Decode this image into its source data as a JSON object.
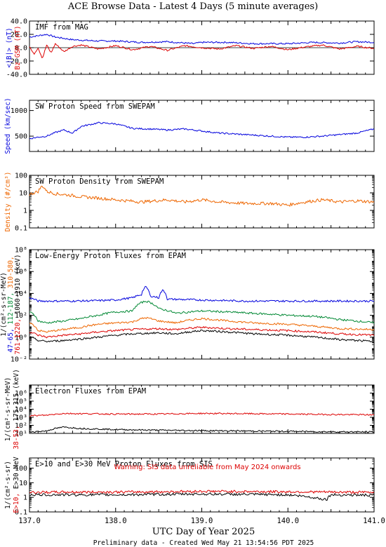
{
  "header": {
    "title": "ACE Browse Data - Latest 4 Days (5 minute averages)",
    "xaxis_title": "UTC Day of Year 2025",
    "footer": "Preliminary data - Created Wed May 21 13:54:56 PDT 2025"
  },
  "chart_data": [
    {
      "type": "line",
      "title": "IMF from MAG",
      "ylabel_parts": [
        {
          "text": "<|B|> (nT)",
          "color": "#0000dd"
        },
        {
          "text": "Bz GSM (nT)",
          "color": "#dd0000"
        }
      ],
      "yscale": "linear",
      "ylim": [
        -40,
        40
      ],
      "yticks": [
        -40,
        -20,
        0,
        20,
        40
      ],
      "ytick_labels": [
        "-40.0",
        "-20.0",
        "0.0",
        "20.0",
        "40.0"
      ],
      "zero_line": true,
      "series": [
        {
          "color": "#0000dd",
          "x": [
            137.0,
            137.1,
            137.2,
            137.3,
            137.5,
            137.8,
            138.0,
            138.3,
            138.6,
            138.9,
            139.0,
            139.3,
            139.6,
            140.0,
            140.3,
            140.6,
            140.8,
            141.0
          ],
          "values": [
            16,
            18,
            20,
            16,
            12,
            10,
            10,
            8,
            9,
            6,
            8,
            8,
            6,
            6,
            8,
            7,
            9,
            8
          ]
        },
        {
          "color": "#dd0000",
          "x": [
            137.0,
            137.05,
            137.1,
            137.15,
            137.2,
            137.25,
            137.3,
            137.4,
            137.5,
            137.6,
            137.8,
            138.0,
            138.2,
            138.4,
            138.6,
            138.8,
            139.0,
            139.2,
            139.4,
            139.6,
            139.8,
            140.0,
            140.2,
            140.4,
            140.6,
            140.8,
            141.0
          ],
          "values": [
            2,
            -10,
            0,
            -16,
            4,
            -8,
            6,
            -6,
            2,
            4,
            -2,
            3,
            -3,
            2,
            -4,
            3,
            0,
            -2,
            3,
            -1,
            2,
            -3,
            1,
            4,
            -2,
            2,
            -1
          ]
        }
      ]
    },
    {
      "type": "line",
      "title": "SW Proton Speed from SWEPAM",
      "ylabel_parts": [
        {
          "text": "Speed (km/sec)",
          "color": "#0000dd"
        }
      ],
      "yscale": "linear",
      "ylim": [
        200,
        1200
      ],
      "yticks": [
        500,
        1000
      ],
      "ytick_labels": [
        "500",
        "1000"
      ],
      "series": [
        {
          "color": "#0000dd",
          "x": [
            137.0,
            137.1,
            137.2,
            137.3,
            137.4,
            137.5,
            137.6,
            137.8,
            138.0,
            138.2,
            138.4,
            138.6,
            138.8,
            139.0,
            139.2,
            139.4,
            139.6,
            139.8,
            140.0,
            140.2,
            140.4,
            140.6,
            140.8,
            141.0
          ],
          "values": [
            450,
            480,
            500,
            570,
            620,
            560,
            690,
            760,
            740,
            650,
            640,
            620,
            640,
            600,
            560,
            540,
            520,
            500,
            480,
            480,
            500,
            530,
            560,
            640
          ]
        }
      ]
    },
    {
      "type": "line",
      "title": "SW Proton Density from SWEPAM",
      "ylabel_parts": [
        {
          "text": "Density (#/cm³)",
          "color": "#ee6600"
        }
      ],
      "yscale": "log",
      "ylim": [
        0.1,
        100
      ],
      "yticks": [
        0.1,
        1,
        10,
        100
      ],
      "ytick_labels": [
        "0.1",
        "1",
        "10",
        "100"
      ],
      "series": [
        {
          "color": "#ee6600",
          "x": [
            137.0,
            137.1,
            137.15,
            137.2,
            137.3,
            137.4,
            137.6,
            137.8,
            138.0,
            138.3,
            138.6,
            138.8,
            139.0,
            139.2,
            139.5,
            139.8,
            140.0,
            140.2,
            140.4,
            140.6,
            140.8,
            141.0
          ],
          "values": [
            8,
            12,
            25,
            12,
            9,
            8,
            6,
            5,
            4,
            3,
            4,
            3,
            4,
            3,
            2.5,
            2.5,
            2,
            3,
            4,
            3,
            3.5,
            3
          ]
        }
      ]
    },
    {
      "type": "line",
      "title": "Low-Energy Proton Fluxes from EPAM",
      "ylabel_parts": [
        {
          "text": "1/(cm²-s-sr-MeV)",
          "color": "#000000"
        },
        {
          "text": "47-65,",
          "color": "#0000dd"
        },
        {
          "text": "112-187,",
          "color": "#008833"
        },
        {
          "text": "310-580,",
          "color": "#ee6600"
        },
        {
          "text": "761-1220,",
          "color": "#dd0000"
        },
        {
          "text": "1060-1910 (keV)",
          "color": "#000000"
        }
      ],
      "yscale": "log",
      "ylim": [
        0.01,
        100000000
      ],
      "yticks": [
        0.01,
        1,
        100,
        10000,
        1000000,
        100000000
      ],
      "ytick_labels": [
        "10⁻²",
        "10⁰",
        "10²",
        "10⁴",
        "10⁶",
        "10⁸"
      ],
      "series": [
        {
          "color": "#0000dd",
          "x": [
            137.0,
            137.1,
            137.2,
            137.5,
            137.8,
            138.0,
            138.2,
            138.3,
            138.35,
            138.4,
            138.5,
            138.55,
            138.6,
            139.0,
            139.5,
            140.0,
            140.5,
            141.0
          ],
          "values": [
            4000,
            2000,
            2000,
            2000,
            2200,
            2500,
            4000,
            8000,
            40000,
            6000,
            4000,
            20000,
            3000,
            2500,
            2000,
            2000,
            2000,
            2000
          ]
        },
        {
          "color": "#008833",
          "x": [
            137.0,
            137.1,
            137.2,
            137.4,
            137.6,
            137.8,
            138.0,
            138.2,
            138.35,
            138.5,
            138.7,
            139.0,
            139.3,
            139.6,
            140.0,
            140.3,
            140.6,
            141.0
          ],
          "values": [
            200,
            30,
            20,
            30,
            50,
            100,
            200,
            250,
            2000,
            400,
            150,
            250,
            200,
            150,
            100,
            80,
            40,
            20
          ]
        },
        {
          "color": "#ee6600",
          "x": [
            137.0,
            137.1,
            137.2,
            137.4,
            137.6,
            137.8,
            138.0,
            138.2,
            138.35,
            138.5,
            138.7,
            139.0,
            139.3,
            139.6,
            140.0,
            140.3,
            140.6,
            141.0
          ],
          "values": [
            20,
            4,
            3,
            5,
            8,
            15,
            20,
            25,
            60,
            30,
            20,
            50,
            30,
            20,
            15,
            10,
            6,
            5
          ]
        },
        {
          "color": "#dd0000",
          "x": [
            137.0,
            137.1,
            137.2,
            137.4,
            137.6,
            137.8,
            138.0,
            138.2,
            138.5,
            138.7,
            139.0,
            139.3,
            139.6,
            140.0,
            140.3,
            140.6,
            141.0
          ],
          "values": [
            3,
            1.5,
            1,
            1.5,
            2,
            3,
            4,
            5,
            6,
            5,
            8,
            6,
            5,
            4,
            3,
            2,
            1.5
          ]
        },
        {
          "color": "#000000",
          "x": [
            137.0,
            137.1,
            137.2,
            137.4,
            137.6,
            137.8,
            138.0,
            138.2,
            138.5,
            138.7,
            139.0,
            139.3,
            139.6,
            140.0,
            140.3,
            140.6,
            141.0
          ],
          "values": [
            1,
            0.5,
            0.4,
            0.5,
            0.7,
            1,
            1.5,
            2,
            2.5,
            2,
            4,
            3,
            2,
            1.5,
            1,
            0.6,
            0.4
          ]
        }
      ]
    },
    {
      "type": "line",
      "title": "Electron Fluxes from EPAM",
      "ylabel_parts": [
        {
          "text": "1/(cm²-s-sr-MeV)",
          "color": "#000000"
        },
        {
          "text": "38-53,",
          "color": "#dd0000"
        },
        {
          "text": "175-315 (keV)",
          "color": "#000000"
        }
      ],
      "yscale": "log",
      "ylim": [
        10,
        10000000
      ],
      "yticks": [
        10,
        100,
        1000,
        10000,
        100000,
        1000000
      ],
      "ytick_labels": [
        "10¹",
        "10²",
        "10³",
        "10⁴",
        "10⁵",
        "10⁶"
      ],
      "series": [
        {
          "color": "#dd0000",
          "x": [
            137.0,
            137.2,
            137.4,
            137.6,
            138.0,
            138.5,
            139.0,
            139.5,
            140.0,
            140.5,
            141.0
          ],
          "values": [
            1500,
            1800,
            3000,
            2800,
            2500,
            2500,
            3000,
            2800,
            2500,
            2200,
            2000
          ]
        },
        {
          "color": "#000000",
          "x": [
            137.0,
            137.2,
            137.4,
            137.6,
            137.8,
            138.0,
            138.5,
            139.0,
            139.5,
            140.0,
            140.5,
            141.0
          ],
          "values": [
            15,
            20,
            60,
            40,
            35,
            30,
            25,
            22,
            20,
            18,
            16,
            15
          ]
        }
      ]
    },
    {
      "type": "line",
      "title": "E>10 and E>30 MeV Proton Fluxes from SIS",
      "warning": "Warning: SIS data unreliable from May 2024 onwards",
      "ylabel_parts": [
        {
          "text": "1/(cm²-s-sr)",
          "color": "#000000"
        },
        {
          "text": "E>10,",
          "color": "#dd0000"
        },
        {
          "text": "E>30 MeV",
          "color": "#000000"
        }
      ],
      "yscale": "log",
      "ylim": [
        0.1,
        500
      ],
      "yticks": [
        0.1,
        1,
        10,
        100
      ],
      "ytick_labels": [
        "0.1",
        "1",
        "10",
        "100"
      ],
      "series": [
        {
          "color": "#dd0000",
          "x": [
            137.0,
            137.5,
            138.0,
            138.5,
            139.0,
            139.5,
            140.0,
            140.5,
            141.0
          ],
          "values": [
            2.2,
            2.3,
            2.3,
            2.4,
            2.6,
            2.5,
            2.4,
            2.3,
            2.2
          ]
        },
        {
          "color": "#000000",
          "x": [
            137.0,
            137.5,
            138.0,
            138.5,
            139.0,
            139.5,
            140.0,
            140.45,
            140.5,
            141.0
          ],
          "values": [
            1.5,
            1.5,
            1.5,
            1.6,
            1.7,
            1.6,
            1.5,
            0.7,
            1.5,
            1.4
          ]
        }
      ]
    }
  ],
  "xaxis": {
    "xlim": [
      137.0,
      141.0
    ],
    "major_ticks": [
      137.0,
      138.0,
      139.0,
      140.0,
      141.0
    ],
    "tick_labels": [
      "137.0",
      "138.0",
      "139.0",
      "140.0",
      "141.0"
    ]
  }
}
